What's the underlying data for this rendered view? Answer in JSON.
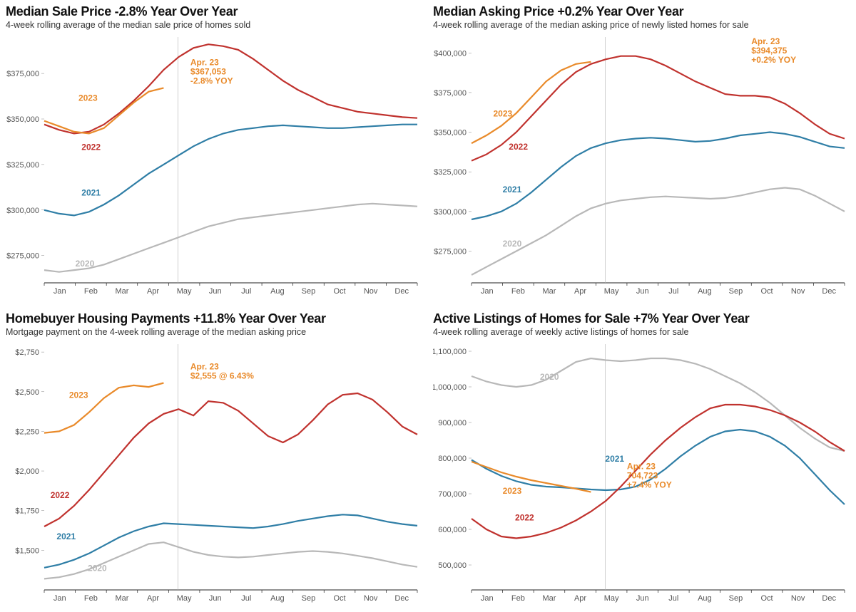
{
  "months": [
    "Jan",
    "Feb",
    "Mar",
    "Apr",
    "May",
    "Jun",
    "Jul",
    "Aug",
    "Sep",
    "Oct",
    "Nov",
    "Dec"
  ],
  "colors": {
    "2020": "#b8b8b8",
    "2021": "#2f7ea6",
    "2022": "#c0322e",
    "2023": "#e98a2a",
    "grid": "#888888",
    "text": "#222222"
  },
  "line_width": 2.2,
  "title_fontsize": 18,
  "subtitle_fontsize": 12.5,
  "tick_fontsize": 11,
  "label_fontsize": 12,
  "panels": [
    {
      "id": "median-sale-price",
      "title": "Median Sale Price -2.8% Year Over Year",
      "subtitle": "4-week rolling average of the median sale price of homes sold",
      "ylim": [
        260000,
        395000
      ],
      "yticks": [
        275000,
        300000,
        325000,
        350000,
        375000
      ],
      "ytick_labels": [
        "$275,000",
        "$300,000",
        "$325,000",
        "$350,000",
        "$375,000"
      ],
      "callout": {
        "x": 4.7,
        "lines": [
          "Apr. 23",
          "$367,053",
          "-2.8% YOY"
        ],
        "color": "#e98a2a",
        "cursor_x": 4.3
      },
      "series_labels": {
        "2020": {
          "x": 1.0,
          "y": 269000
        },
        "2021": {
          "x": 1.2,
          "y": 308000
        },
        "2022": {
          "x": 1.2,
          "y": 333000
        },
        "2023": {
          "x": 1.1,
          "y": 360000
        }
      },
      "series": {
        "2020": [
          267000,
          266000,
          267000,
          268000,
          270000,
          273000,
          276000,
          279000,
          282000,
          285000,
          288000,
          291000,
          293000,
          295000,
          296000,
          297000,
          298000,
          299000,
          300000,
          301000,
          302000,
          303000,
          303500,
          303000,
          302500,
          302000
        ],
        "2021": [
          300000,
          298000,
          297000,
          299000,
          303000,
          308000,
          314000,
          320000,
          325000,
          330000,
          335000,
          339000,
          342000,
          344000,
          345000,
          346000,
          346500,
          346000,
          345500,
          345000,
          345000,
          345500,
          346000,
          346500,
          347000,
          347000
        ],
        "2022": [
          347000,
          344000,
          342000,
          343000,
          347000,
          353000,
          360000,
          368000,
          377000,
          384000,
          389000,
          391000,
          390000,
          388000,
          383000,
          377000,
          371000,
          366000,
          362000,
          358000,
          356000,
          354000,
          353000,
          352000,
          351000,
          350500
        ],
        "2023": [
          349000,
          346000,
          343000,
          342000,
          345000,
          352000,
          359000,
          365000,
          367053
        ]
      }
    },
    {
      "id": "median-asking-price",
      "title": "Median Asking Price +0.2% Year Over Year",
      "subtitle": "4-week rolling average of the median asking price of newly listed homes for sale",
      "ylim": [
        255000,
        410000
      ],
      "yticks": [
        275000,
        300000,
        325000,
        350000,
        375000,
        400000
      ],
      "ytick_labels": [
        "$275,000",
        "$300,000",
        "$325,000",
        "$350,000",
        "$375,000",
        "$400,000"
      ],
      "callout": {
        "x": 9.0,
        "lines": [
          "Apr. 23",
          "$394,375",
          "+0.2% YOY"
        ],
        "color": "#e98a2a",
        "cursor_x": 4.3
      },
      "series_labels": {
        "2020": {
          "x": 1.0,
          "y": 278000
        },
        "2021": {
          "x": 1.0,
          "y": 312000
        },
        "2022": {
          "x": 1.2,
          "y": 339000
        },
        "2023": {
          "x": 0.7,
          "y": 360000
        }
      },
      "series": {
        "2020": [
          260000,
          265000,
          270000,
          275000,
          280000,
          285000,
          291000,
          297000,
          302000,
          305000,
          307000,
          308000,
          309000,
          309500,
          309000,
          308500,
          308000,
          308500,
          310000,
          312000,
          314000,
          315000,
          314000,
          310000,
          305000,
          300000
        ],
        "2021": [
          295000,
          297000,
          300000,
          305000,
          312000,
          320000,
          328000,
          335000,
          340000,
          343000,
          345000,
          346000,
          346500,
          346000,
          345000,
          344000,
          344500,
          346000,
          348000,
          349000,
          350000,
          349000,
          347000,
          344000,
          341000,
          340000
        ],
        "2022": [
          332000,
          336000,
          342000,
          350000,
          360000,
          370000,
          380000,
          388000,
          393000,
          396000,
          398000,
          398000,
          396000,
          392000,
          387000,
          382000,
          378000,
          374000,
          373000,
          373000,
          372000,
          368000,
          362000,
          355000,
          349000,
          346000
        ],
        "2023": [
          343000,
          348000,
          354000,
          362000,
          372000,
          382000,
          389000,
          393000,
          394375
        ]
      }
    },
    {
      "id": "homebuyer-payments",
      "title": "Homebuyer Housing Payments +11.8% Year Over Year",
      "subtitle": "Mortgage payment on the 4-week rolling average of the median asking price",
      "ylim": [
        1250,
        2800
      ],
      "yticks": [
        1500,
        1750,
        2000,
        2250,
        2500,
        2750
      ],
      "ytick_labels": [
        "$1,500",
        "$1,750",
        "$2,000",
        "$2,250",
        "$2,500",
        "$2,750"
      ],
      "callout": {
        "x": 4.7,
        "lines": [
          "Apr. 23",
          "$2,555 @ 6.43%"
        ],
        "color": "#e98a2a",
        "cursor_x": 4.3
      },
      "series_labels": {
        "2020": {
          "x": 1.4,
          "y": 1370
        },
        "2021": {
          "x": 0.4,
          "y": 1570
        },
        "2022": {
          "x": 0.2,
          "y": 1830
        },
        "2023": {
          "x": 0.8,
          "y": 2460
        }
      },
      "series": {
        "2020": [
          1320,
          1330,
          1350,
          1380,
          1420,
          1460,
          1500,
          1540,
          1550,
          1520,
          1490,
          1470,
          1460,
          1455,
          1460,
          1470,
          1480,
          1490,
          1495,
          1490,
          1480,
          1465,
          1450,
          1430,
          1410,
          1395
        ],
        "2021": [
          1390,
          1410,
          1440,
          1480,
          1530,
          1580,
          1620,
          1650,
          1670,
          1665,
          1660,
          1655,
          1650,
          1645,
          1640,
          1650,
          1665,
          1685,
          1700,
          1715,
          1725,
          1720,
          1700,
          1680,
          1665,
          1655
        ],
        "2022": [
          1650,
          1700,
          1780,
          1880,
          1990,
          2100,
          2210,
          2300,
          2360,
          2390,
          2350,
          2440,
          2430,
          2380,
          2300,
          2220,
          2180,
          2230,
          2320,
          2420,
          2480,
          2490,
          2450,
          2370,
          2280,
          2230
        ],
        "2023": [
          2240,
          2250,
          2290,
          2370,
          2460,
          2525,
          2540,
          2530,
          2555
        ]
      }
    },
    {
      "id": "active-listings",
      "title": "Active Listings of Homes for Sale +7% Year Over Year",
      "subtitle": "4-week rolling average of weekly active listings of homes for sale",
      "ylim": [
        430000,
        1120000
      ],
      "yticks": [
        500000,
        600000,
        700000,
        800000,
        900000,
        1000000,
        1100000
      ],
      "ytick_labels": [
        "500,000",
        "600,000",
        "700,000",
        "800,000",
        "900,000",
        "1,000,000",
        "1,100,000"
      ],
      "callout": {
        "x": 5.0,
        "lines": [
          "Apr. 23",
          "704,723",
          "+7.4% YOY"
        ],
        "color": "#e98a2a",
        "cursor_x": 4.3
      },
      "series_labels": {
        "2020": {
          "x": 2.2,
          "y": 1020000
        },
        "2021": {
          "x": 4.3,
          "y": 790000
        },
        "2022": {
          "x": 1.4,
          "y": 625000
        },
        "2023": {
          "x": 1.0,
          "y": 700000
        }
      },
      "series": {
        "2020": [
          1030000,
          1015000,
          1005000,
          1000000,
          1005000,
          1020000,
          1045000,
          1070000,
          1080000,
          1075000,
          1072000,
          1075000,
          1080000,
          1080000,
          1075000,
          1065000,
          1050000,
          1030000,
          1010000,
          985000,
          955000,
          920000,
          885000,
          855000,
          830000,
          820000
        ],
        "2021": [
          795000,
          770000,
          750000,
          735000,
          725000,
          720000,
          718000,
          715000,
          712000,
          710000,
          712000,
          720000,
          740000,
          770000,
          805000,
          835000,
          860000,
          875000,
          880000,
          875000,
          860000,
          835000,
          800000,
          755000,
          710000,
          670000
        ],
        "2022": [
          630000,
          600000,
          580000,
          575000,
          580000,
          590000,
          605000,
          625000,
          650000,
          680000,
          720000,
          765000,
          810000,
          850000,
          885000,
          915000,
          940000,
          950000,
          950000,
          945000,
          935000,
          920000,
          900000,
          875000,
          845000,
          820000
        ],
        "2023": [
          790000,
          775000,
          760000,
          748000,
          738000,
          730000,
          722000,
          714000,
          704723
        ]
      }
    }
  ]
}
